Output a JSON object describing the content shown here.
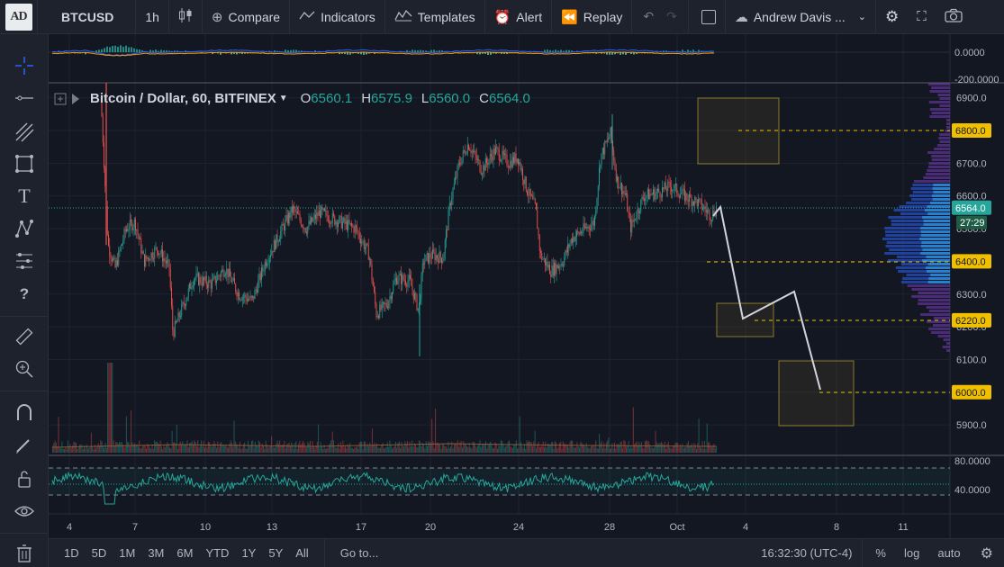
{
  "app": {
    "logo_text": "AD"
  },
  "toolbar": {
    "symbol": "BTCUSD",
    "interval": "1h",
    "compare": "Compare",
    "indicators": "Indicators",
    "templates": "Templates",
    "alert": "Alert",
    "replay": "Replay",
    "user": "Andrew Davis ..."
  },
  "legend": {
    "title": "Bitcoin / Dollar, 60, BITFINEX",
    "open_label": "O",
    "open": "6560.1",
    "high_label": "H",
    "high": "6575.9",
    "low_label": "L",
    "low": "6560.0",
    "close_label": "C",
    "close": "6564.0"
  },
  "price_axis": {
    "ticks": [
      "6900.0",
      "6800.0",
      "6700.0",
      "6600.0",
      "6500.0",
      "6400.0",
      "6300.0",
      "6200.0",
      "6100.0",
      "6000.0",
      "5900.0"
    ],
    "current_price": "6564.0",
    "countdown": "27:29",
    "level_labels": [
      "6800.0",
      "6400.0",
      "6220.0",
      "6000.0"
    ],
    "colors": {
      "level": "#f0c000",
      "current": "#26a69a",
      "countdown": "#1e5c45"
    }
  },
  "indicator_top": {
    "ticks": [
      "0.0000",
      "-200.0000"
    ]
  },
  "indicator_bottom": {
    "ticks": [
      "80.0000",
      "40.0000"
    ]
  },
  "time_axis": {
    "labels": [
      "4",
      "7",
      "10",
      "13",
      "17",
      "20",
      "24",
      "28",
      "Oct",
      "4",
      "8",
      "11"
    ]
  },
  "bottom": {
    "ranges": [
      "1D",
      "5D",
      "1M",
      "3M",
      "6M",
      "YTD",
      "1Y",
      "5Y",
      "All"
    ],
    "goto": "Go to...",
    "clock": "16:32:30 (UTC-4)",
    "percent": "%",
    "log": "log",
    "auto": "auto"
  },
  "colors": {
    "up": "#26a69a",
    "down": "#ef5350",
    "bg": "#131722",
    "panel": "#1e222d"
  }
}
